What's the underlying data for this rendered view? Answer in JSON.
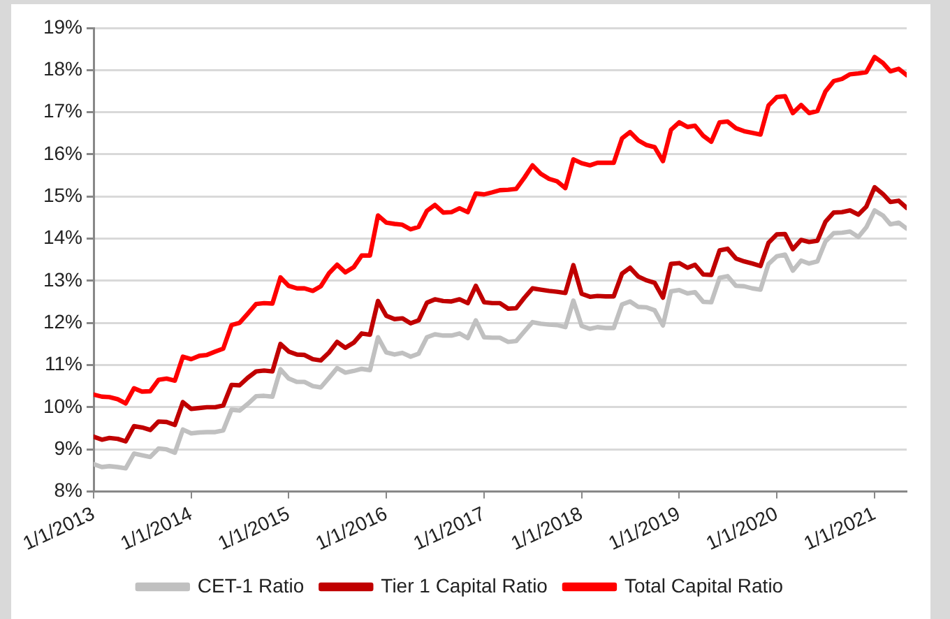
{
  "chart_data": {
    "type": "line",
    "grid": "y",
    "legend": "bottom",
    "x": [
      "2013-01",
      "2013-02",
      "2013-03",
      "2013-04",
      "2013-05",
      "2013-06",
      "2013-07",
      "2013-08",
      "2013-09",
      "2013-10",
      "2013-11",
      "2013-12",
      "2014-01",
      "2014-02",
      "2014-03",
      "2014-04",
      "2014-05",
      "2014-06",
      "2014-07",
      "2014-08",
      "2014-09",
      "2014-10",
      "2014-11",
      "2014-12",
      "2015-01",
      "2015-02",
      "2015-03",
      "2015-04",
      "2015-05",
      "2015-06",
      "2015-07",
      "2015-08",
      "2015-09",
      "2015-10",
      "2015-11",
      "2015-12",
      "2016-01",
      "2016-02",
      "2016-03",
      "2016-04",
      "2016-05",
      "2016-06",
      "2016-07",
      "2016-08",
      "2016-09",
      "2016-10",
      "2016-11",
      "2016-12",
      "2017-01",
      "2017-02",
      "2017-03",
      "2017-04",
      "2017-05",
      "2017-06",
      "2017-07",
      "2017-08",
      "2017-09",
      "2017-10",
      "2017-11",
      "2017-12",
      "2018-01",
      "2018-02",
      "2018-03",
      "2018-04",
      "2018-05",
      "2018-06",
      "2018-07",
      "2018-08",
      "2018-09",
      "2018-10",
      "2018-11",
      "2018-12",
      "2019-01",
      "2019-02",
      "2019-03",
      "2019-04",
      "2019-05",
      "2019-06",
      "2019-07",
      "2019-08",
      "2019-09",
      "2019-10",
      "2019-11",
      "2019-12",
      "2020-01",
      "2020-02",
      "2020-03",
      "2020-04",
      "2020-05",
      "2020-06",
      "2020-07",
      "2020-08",
      "2020-09",
      "2020-10",
      "2020-11",
      "2020-12",
      "2021-01",
      "2021-02",
      "2021-03",
      "2021-04",
      "2021-05"
    ],
    "xlim": [
      "2013-01",
      "2021-05"
    ],
    "xticks": [
      {
        "value": "2013-01-01",
        "label": "1/1/2013"
      },
      {
        "value": "2014-01-01",
        "label": "1/1/2014"
      },
      {
        "value": "2015-01-01",
        "label": "1/1/2015"
      },
      {
        "value": "2016-01-01",
        "label": "1/1/2016"
      },
      {
        "value": "2017-01-01",
        "label": "1/1/2017"
      },
      {
        "value": "2018-01-01",
        "label": "1/1/2018"
      },
      {
        "value": "2019-01-01",
        "label": "1/1/2019"
      },
      {
        "value": "2020-01-01",
        "label": "1/1/2020"
      },
      {
        "value": "2021-01-01",
        "label": "1/1/2021"
      }
    ],
    "ylim": [
      8,
      19
    ],
    "yticks": [
      {
        "value": 8,
        "label": "8%"
      },
      {
        "value": 9,
        "label": "9%"
      },
      {
        "value": 10,
        "label": "10%"
      },
      {
        "value": 11,
        "label": "11%"
      },
      {
        "value": 12,
        "label": "12%"
      },
      {
        "value": 13,
        "label": "13%"
      },
      {
        "value": 14,
        "label": "14%"
      },
      {
        "value": 15,
        "label": "15%"
      },
      {
        "value": 16,
        "label": "16%"
      },
      {
        "value": 17,
        "label": "17%"
      },
      {
        "value": 18,
        "label": "18%"
      },
      {
        "value": 19,
        "label": "19%"
      }
    ],
    "series": [
      {
        "name": "CET-1 Ratio",
        "color": "#c0c0c0",
        "values": [
          8.65,
          8.58,
          8.6,
          8.58,
          8.55,
          8.9,
          8.86,
          8.82,
          9.02,
          9.0,
          8.92,
          9.47,
          9.38,
          9.4,
          9.41,
          9.41,
          9.45,
          9.94,
          9.92,
          10.08,
          10.26,
          10.27,
          10.25,
          10.9,
          10.68,
          10.6,
          10.6,
          10.5,
          10.47,
          10.7,
          10.93,
          10.82,
          10.86,
          10.91,
          10.88,
          11.66,
          11.3,
          11.25,
          11.29,
          11.2,
          11.27,
          11.66,
          11.73,
          11.7,
          11.7,
          11.75,
          11.64,
          12.06,
          11.66,
          11.65,
          11.65,
          11.55,
          11.57,
          11.8,
          12.02,
          11.98,
          11.96,
          11.95,
          11.9,
          12.53,
          11.93,
          11.86,
          11.9,
          11.88,
          11.88,
          12.44,
          12.51,
          12.38,
          12.37,
          12.3,
          11.94,
          12.75,
          12.78,
          12.7,
          12.73,
          12.5,
          12.49,
          13.07,
          13.11,
          12.88,
          12.87,
          12.82,
          12.79,
          13.4,
          13.58,
          13.62,
          13.24,
          13.48,
          13.41,
          13.46,
          13.93,
          14.13,
          14.14,
          14.17,
          14.04,
          14.27,
          14.67,
          14.55,
          14.34,
          14.38,
          14.24
        ]
      },
      {
        "name": "Tier 1 Capital Ratio",
        "color": "#c00000",
        "values": [
          9.3,
          9.23,
          9.27,
          9.25,
          9.19,
          9.55,
          9.52,
          9.46,
          9.66,
          9.65,
          9.58,
          10.12,
          9.96,
          9.98,
          10.0,
          10.0,
          10.04,
          10.53,
          10.52,
          10.7,
          10.85,
          10.87,
          10.85,
          11.5,
          11.32,
          11.25,
          11.24,
          11.14,
          11.11,
          11.3,
          11.55,
          11.41,
          11.53,
          11.75,
          11.72,
          12.52,
          12.17,
          12.09,
          12.11,
          11.99,
          12.06,
          12.48,
          12.56,
          12.52,
          12.51,
          12.56,
          12.47,
          12.88,
          12.49,
          12.47,
          12.47,
          12.34,
          12.35,
          12.6,
          12.82,
          12.79,
          12.76,
          12.74,
          12.71,
          13.37,
          12.69,
          12.62,
          12.64,
          12.63,
          12.63,
          13.17,
          13.31,
          13.1,
          13.01,
          12.95,
          12.6,
          13.4,
          13.42,
          13.31,
          13.38,
          13.15,
          13.14,
          13.72,
          13.76,
          13.53,
          13.46,
          13.41,
          13.35,
          13.9,
          14.1,
          14.11,
          13.75,
          13.97,
          13.92,
          13.95,
          14.4,
          14.62,
          14.63,
          14.67,
          14.57,
          14.76,
          15.22,
          15.06,
          14.87,
          14.9,
          14.73
        ]
      },
      {
        "name": "Total Capital Ratio",
        "color": "#ff0000",
        "values": [
          10.3,
          10.25,
          10.24,
          10.19,
          10.09,
          10.45,
          10.37,
          10.38,
          10.65,
          10.68,
          10.63,
          11.2,
          11.14,
          11.22,
          11.24,
          11.32,
          11.39,
          11.95,
          12.0,
          12.22,
          12.45,
          12.47,
          12.46,
          13.08,
          12.88,
          12.82,
          12.82,
          12.76,
          12.87,
          13.18,
          13.38,
          13.2,
          13.32,
          13.6,
          13.6,
          14.55,
          14.38,
          14.35,
          14.33,
          14.22,
          14.28,
          14.66,
          14.8,
          14.62,
          14.63,
          14.72,
          14.63,
          15.07,
          15.05,
          15.1,
          15.15,
          15.16,
          15.18,
          15.45,
          15.74,
          15.54,
          15.42,
          15.36,
          15.2,
          15.88,
          15.79,
          15.74,
          15.8,
          15.8,
          15.8,
          16.38,
          16.53,
          16.33,
          16.22,
          16.17,
          15.84,
          16.58,
          16.76,
          16.65,
          16.68,
          16.44,
          16.3,
          16.76,
          16.78,
          16.62,
          16.55,
          16.51,
          16.47,
          17.16,
          17.36,
          17.38,
          16.98,
          17.17,
          16.98,
          17.03,
          17.49,
          17.74,
          17.79,
          17.9,
          17.92,
          17.95,
          18.31,
          18.17,
          17.97,
          18.03,
          17.88
        ]
      }
    ]
  }
}
